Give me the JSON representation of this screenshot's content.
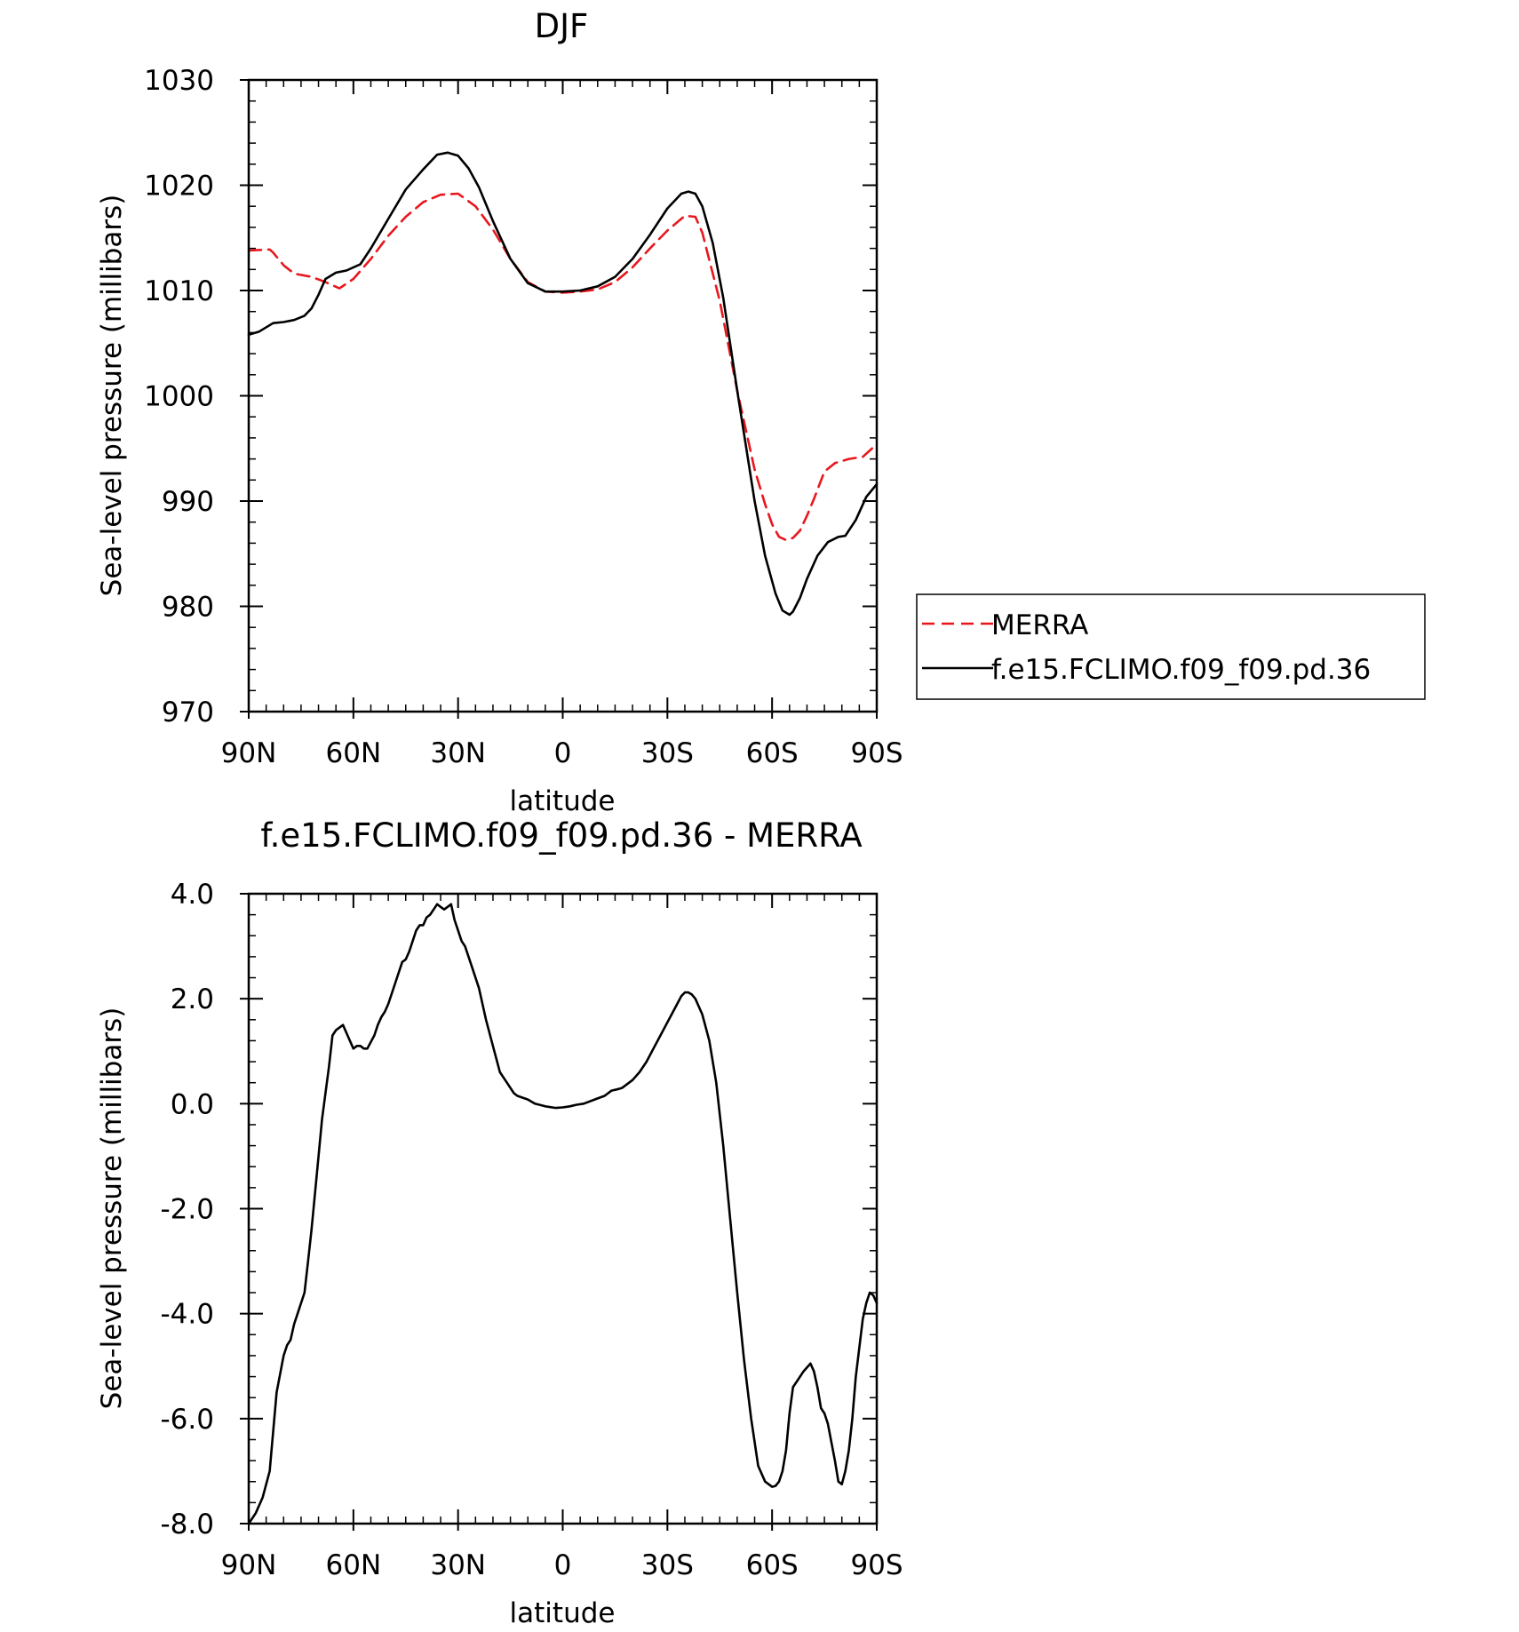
{
  "chart_data": [
    {
      "type": "line",
      "title": "DJF",
      "xlabel": "latitude",
      "ylabel": "Sea-level pressure (millibars)",
      "xlim": [
        90,
        -90
      ],
      "ylim": [
        970,
        1030
      ],
      "xticks": [
        90,
        60,
        30,
        0,
        -30,
        -60,
        -90
      ],
      "xtick_labels": [
        "90N",
        "60N",
        "30N",
        "0",
        "30S",
        "60S",
        "90S"
      ],
      "yticks": [
        970,
        980,
        990,
        1000,
        1010,
        1020,
        1030
      ],
      "ytick_labels": [
        "970",
        "980",
        "990",
        "1000",
        "1010",
        "1020",
        "1030"
      ],
      "legend": "outside-right",
      "series": [
        {
          "name": "MERRA",
          "color": "#e8171d",
          "dash": "dashed",
          "x": [
            90,
            84,
            83,
            80,
            77,
            72,
            68,
            64,
            60,
            55,
            50,
            45,
            40,
            35,
            30,
            25,
            20,
            15,
            10,
            5,
            0,
            -5,
            -10,
            -15,
            -20,
            -25,
            -30,
            -35,
            -38,
            -40,
            -45,
            -50,
            -55,
            -58,
            -60,
            -62,
            -64,
            -66,
            -68,
            -70,
            -72,
            -75,
            -78,
            -82,
            -86,
            -90
          ],
          "y": [
            1013.8,
            1013.9,
            1013.6,
            1012.4,
            1011.6,
            1011.3,
            1010.8,
            1010.2,
            1011.1,
            1013.0,
            1015.2,
            1017.0,
            1018.4,
            1019.1,
            1019.2,
            1018.0,
            1015.8,
            1013.0,
            1010.8,
            1009.9,
            1009.8,
            1009.9,
            1010.1,
            1010.8,
            1012.2,
            1014.0,
            1015.7,
            1017.1,
            1017.0,
            1015.5,
            1009.0,
            1000.5,
            993.0,
            989.7,
            987.8,
            986.6,
            986.3,
            986.5,
            987.2,
            988.6,
            990.2,
            992.8,
            993.6,
            994.0,
            994.2,
            995.4
          ]
        },
        {
          "name": "f.e15.FCLIMO.f09_f09.pd.36",
          "color": "#000000",
          "dash": "solid",
          "x": [
            90,
            87,
            83,
            80,
            77,
            74,
            72,
            70,
            68,
            65,
            62,
            58,
            55,
            50,
            45,
            40,
            36,
            33,
            30,
            27,
            24,
            20,
            15,
            10,
            5,
            0,
            -5,
            -10,
            -15,
            -20,
            -25,
            -30,
            -34,
            -36,
            -38,
            -40,
            -43,
            -46,
            -50,
            -55,
            -58,
            -61,
            -63,
            -65,
            -66,
            -68,
            -70,
            -73,
            -76,
            -79,
            -81,
            -84,
            -87,
            -90
          ],
          "y": [
            1005.8,
            1006.1,
            1006.9,
            1007.0,
            1007.2,
            1007.6,
            1008.3,
            1009.6,
            1011.1,
            1011.7,
            1011.9,
            1012.5,
            1014.0,
            1016.8,
            1019.6,
            1021.5,
            1022.9,
            1023.1,
            1022.8,
            1021.6,
            1019.8,
            1016.6,
            1013.0,
            1010.7,
            1009.9,
            1009.9,
            1010.0,
            1010.4,
            1011.3,
            1013.0,
            1015.3,
            1017.8,
            1019.2,
            1019.4,
            1019.2,
            1018.0,
            1014.5,
            1009.3,
            1000.5,
            990.0,
            984.8,
            981.2,
            979.6,
            979.2,
            979.5,
            980.8,
            982.6,
            984.8,
            986.1,
            986.6,
            986.7,
            988.2,
            990.4,
            991.6
          ]
        }
      ]
    },
    {
      "type": "line",
      "title": "f.e15.FCLIMO.f09_f09.pd.36 - MERRA",
      "xlabel": "latitude",
      "ylabel": "Sea-level pressure (millibars)",
      "xlim": [
        90,
        -90
      ],
      "ylim": [
        -8,
        4
      ],
      "xticks": [
        90,
        60,
        30,
        0,
        -30,
        -60,
        -90
      ],
      "xtick_labels": [
        "90N",
        "60N",
        "30N",
        "0",
        "30S",
        "60S",
        "90S"
      ],
      "yticks": [
        -8,
        -6,
        -4,
        -2,
        0,
        2,
        4
      ],
      "ytick_labels": [
        "-8.0",
        "-6.0",
        "-4.0",
        "-2.0",
        "0.0",
        "2.0",
        "4.0"
      ],
      "series": [
        {
          "color": "#000000",
          "dash": "solid",
          "x": [
            90,
            88,
            86,
            84,
            82,
            80,
            79,
            78,
            77,
            76,
            74,
            73,
            72,
            70,
            69,
            68,
            67,
            66,
            65,
            64,
            63,
            62,
            60,
            59,
            58,
            57,
            56,
            54,
            53,
            52,
            51,
            50,
            48,
            46,
            45,
            44,
            43,
            42,
            41,
            40,
            39,
            38,
            36,
            35,
            34,
            33,
            32,
            31,
            30,
            29,
            28,
            26,
            24,
            22,
            20,
            18,
            16,
            14,
            13,
            10,
            8,
            5,
            2,
            0,
            -2,
            -4,
            -6,
            -8,
            -10,
            -12,
            -14,
            -16,
            -17,
            -18,
            -20,
            -22,
            -24,
            -26,
            -28,
            -30,
            -32,
            -34,
            -35,
            -36,
            -37,
            -38,
            -40,
            -42,
            -44,
            -46,
            -48,
            -50,
            -52,
            -54,
            -56,
            -58,
            -60,
            -61,
            -62,
            -63,
            -64,
            -65,
            -66,
            -67,
            -69,
            -71,
            -72,
            -73,
            -74,
            -75,
            -76,
            -78,
            -79,
            -80,
            -81,
            -82,
            -83,
            -84,
            -86,
            -87,
            -88,
            -89,
            -90
          ],
          "y": [
            -8.0,
            -7.8,
            -7.5,
            -7.0,
            -5.5,
            -4.8,
            -4.6,
            -4.5,
            -4.2,
            -4.0,
            -3.6,
            -3.0,
            -2.4,
            -1.0,
            -0.3,
            0.2,
            0.7,
            1.3,
            1.4,
            1.45,
            1.5,
            1.35,
            1.05,
            1.1,
            1.1,
            1.05,
            1.05,
            1.3,
            1.5,
            1.65,
            1.75,
            1.9,
            2.3,
            2.7,
            2.75,
            2.9,
            3.1,
            3.3,
            3.4,
            3.4,
            3.55,
            3.6,
            3.8,
            3.75,
            3.7,
            3.75,
            3.8,
            3.5,
            3.3,
            3.1,
            3.0,
            2.6,
            2.2,
            1.6,
            1.1,
            0.6,
            0.4,
            0.2,
            0.15,
            0.08,
            0.0,
            -0.05,
            -0.08,
            -0.07,
            -0.05,
            -0.02,
            0.0,
            0.05,
            0.1,
            0.15,
            0.25,
            0.28,
            0.3,
            0.35,
            0.45,
            0.6,
            0.8,
            1.05,
            1.3,
            1.55,
            1.8,
            2.05,
            2.12,
            2.12,
            2.08,
            2.0,
            1.7,
            1.2,
            0.4,
            -0.8,
            -2.2,
            -3.6,
            -4.9,
            -6.0,
            -6.9,
            -7.2,
            -7.3,
            -7.28,
            -7.2,
            -7.0,
            -6.6,
            -5.9,
            -5.4,
            -5.3,
            -5.1,
            -4.95,
            -5.1,
            -5.4,
            -5.8,
            -5.9,
            -6.1,
            -6.8,
            -7.2,
            -7.25,
            -7.0,
            -6.6,
            -6.0,
            -5.2,
            -4.1,
            -3.8,
            -3.6,
            -3.65,
            -3.8
          ]
        }
      ]
    }
  ]
}
